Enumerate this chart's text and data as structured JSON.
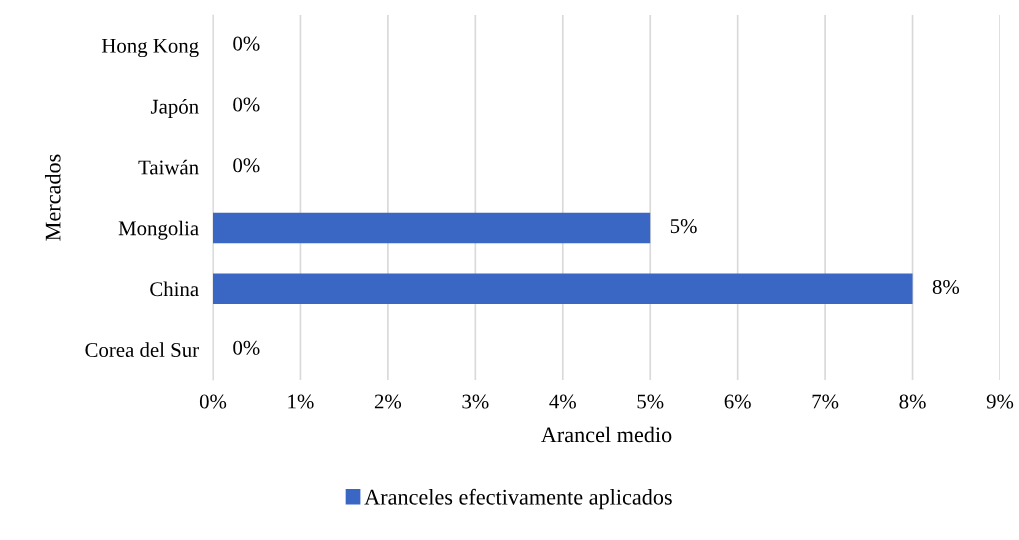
{
  "chart_data": {
    "type": "bar",
    "orientation": "horizontal",
    "xlabel": "Arancel medio",
    "ylabel": "Mercados",
    "categories": [
      "Hong Kong",
      "Japón",
      "Taiwán",
      "Mongolia",
      "China",
      "Corea del Sur"
    ],
    "series": [
      {
        "name": "Aranceles efectivamente aplicados",
        "color": "#3a66c4",
        "values": [
          0,
          0,
          0,
          5,
          8,
          0
        ],
        "value_labels": [
          "0%",
          "0%",
          "0%",
          "5%",
          "8%",
          "0%"
        ]
      }
    ],
    "xlim": [
      0,
      9
    ],
    "xticks": [
      {
        "value": 0,
        "label": "0%"
      },
      {
        "value": 1,
        "label": "1%"
      },
      {
        "value": 2,
        "label": "2%"
      },
      {
        "value": 3,
        "label": "3%"
      },
      {
        "value": 4,
        "label": "4%"
      },
      {
        "value": 5,
        "label": "5%"
      },
      {
        "value": 6,
        "label": "6%"
      },
      {
        "value": 7,
        "label": "7%"
      },
      {
        "value": 8,
        "label": "8%"
      },
      {
        "value": 9,
        "label": "9%"
      }
    ],
    "grid": "x",
    "legend": "bottom"
  }
}
